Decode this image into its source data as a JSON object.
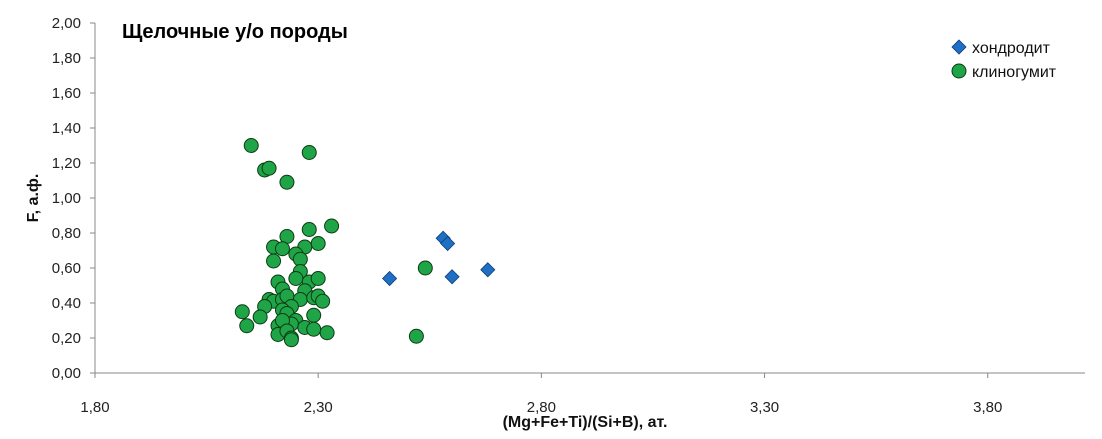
{
  "chart_data": {
    "type": "scatter",
    "title": "Щелочные у/о породы",
    "xlabel": "(Mg+Fe+Ti)/(Si+B), ат.",
    "ylabel": "F, а.ф.",
    "xlim": [
      1.8,
      4.0
    ],
    "ylim": [
      0.0,
      2.0
    ],
    "xticks": [
      "1,80",
      "2,30",
      "2,80",
      "3,30",
      "3,80"
    ],
    "yticks": [
      "0,00",
      "0,20",
      "0,40",
      "0,60",
      "0,80",
      "1,00",
      "1,20",
      "1,40",
      "1,60",
      "1,80",
      "2,00"
    ],
    "grid": false,
    "legend_position": "top-right",
    "series": [
      {
        "name": "хондродит",
        "marker": "diamond",
        "color": "#1f6fc5",
        "points": [
          [
            2.46,
            0.54
          ],
          [
            2.58,
            0.77
          ],
          [
            2.59,
            0.74
          ],
          [
            2.6,
            0.55
          ],
          [
            2.68,
            0.59
          ]
        ]
      },
      {
        "name": "клиногумит",
        "marker": "circle",
        "color": "#1fa447",
        "points": [
          [
            2.15,
            1.3
          ],
          [
            2.18,
            1.16
          ],
          [
            2.19,
            1.17
          ],
          [
            2.28,
            1.26
          ],
          [
            2.23,
            1.09
          ],
          [
            2.33,
            0.84
          ],
          [
            2.28,
            0.82
          ],
          [
            2.23,
            0.78
          ],
          [
            2.3,
            0.74
          ],
          [
            2.2,
            0.72
          ],
          [
            2.22,
            0.71
          ],
          [
            2.27,
            0.72
          ],
          [
            2.25,
            0.68
          ],
          [
            2.26,
            0.65
          ],
          [
            2.2,
            0.64
          ],
          [
            2.54,
            0.6
          ],
          [
            2.26,
            0.58
          ],
          [
            2.25,
            0.54
          ],
          [
            2.28,
            0.52
          ],
          [
            2.3,
            0.54
          ],
          [
            2.21,
            0.52
          ],
          [
            2.22,
            0.48
          ],
          [
            2.27,
            0.47
          ],
          [
            2.19,
            0.42
          ],
          [
            2.2,
            0.41
          ],
          [
            2.22,
            0.42
          ],
          [
            2.23,
            0.44
          ],
          [
            2.26,
            0.42
          ],
          [
            2.29,
            0.43
          ],
          [
            2.3,
            0.44
          ],
          [
            2.31,
            0.41
          ],
          [
            2.24,
            0.38
          ],
          [
            2.18,
            0.38
          ],
          [
            2.22,
            0.36
          ],
          [
            2.13,
            0.35
          ],
          [
            2.17,
            0.32
          ],
          [
            2.23,
            0.34
          ],
          [
            2.25,
            0.3
          ],
          [
            2.29,
            0.33
          ],
          [
            2.14,
            0.27
          ],
          [
            2.21,
            0.27
          ],
          [
            2.24,
            0.28
          ],
          [
            2.27,
            0.26
          ],
          [
            2.22,
            0.3
          ],
          [
            2.21,
            0.22
          ],
          [
            2.23,
            0.24
          ],
          [
            2.24,
            0.2
          ],
          [
            2.24,
            0.19
          ],
          [
            2.29,
            0.25
          ],
          [
            2.32,
            0.23
          ],
          [
            2.52,
            0.21
          ]
        ]
      }
    ]
  }
}
